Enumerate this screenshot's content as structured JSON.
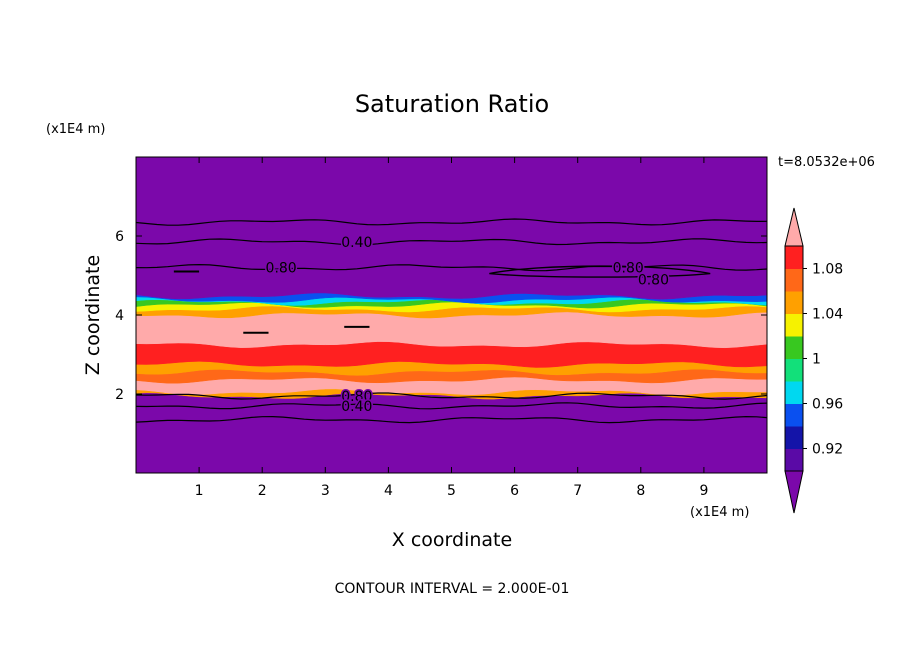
{
  "chart_data": {
    "type": "heatmap",
    "title": "Saturation Ratio",
    "xlabel": "X coordinate",
    "ylabel": "Z coordinate",
    "x_unit": "(x1E4 m)",
    "y_unit": "(x1E4 m)",
    "time_label": "t=8.0532e+06",
    "footer": "CONTOUR INTERVAL = 2.000E-01",
    "xlim": [
      0,
      10
    ],
    "ylim": [
      0,
      8
    ],
    "x_ticks": [
      1,
      2,
      3,
      4,
      5,
      6,
      7,
      8,
      9
    ],
    "y_ticks": [
      2,
      4,
      6
    ],
    "colorbar": {
      "bounds": [
        0.9,
        0.92,
        0.94,
        0.96,
        0.98,
        1.0,
        1.02,
        1.04,
        1.06,
        1.08,
        1.1
      ],
      "colors": [
        "#5a0aa6",
        "#1414a8",
        "#0a50f0",
        "#00d8f0",
        "#12e07a",
        "#38c820",
        "#f6f200",
        "#ffa000",
        "#ff6818",
        "#ff2020"
      ],
      "under_color": "#7b08aa",
      "over_color": "#ffaaaa",
      "tick_labels": [
        "0.92",
        "0.96",
        "1",
        "1.04",
        "1.08"
      ]
    },
    "bands": [
      {
        "z0": 0.0,
        "z1": 1.95,
        "color": "#7b08aa"
      },
      {
        "z0": 1.95,
        "z1": 2.05,
        "color": "#ffa000"
      },
      {
        "z0": 2.05,
        "z1": 2.35,
        "color": "#ffaaaa"
      },
      {
        "z0": 2.35,
        "z1": 2.55,
        "color": "#ff6818"
      },
      {
        "z0": 2.55,
        "z1": 2.75,
        "color": "#ffa000"
      },
      {
        "z0": 2.75,
        "z1": 3.25,
        "color": "#ff2020"
      },
      {
        "z0": 3.25,
        "z1": 4.0,
        "color": "#ffaaaa"
      },
      {
        "z0": 4.0,
        "z1": 4.15,
        "color": "#ffa000"
      },
      {
        "z0": 4.15,
        "z1": 4.25,
        "color": "#f6f200"
      },
      {
        "z0": 4.25,
        "z1": 4.32,
        "color": "#38c820"
      },
      {
        "z0": 4.32,
        "z1": 4.38,
        "color": "#00d8f0"
      },
      {
        "z0": 4.38,
        "z1": 4.48,
        "color": "#0a50f0"
      },
      {
        "z0": 4.48,
        "z1": 8.0,
        "color": "#7b08aa"
      }
    ],
    "contour_levels": [
      {
        "z": 6.35,
        "label": null
      },
      {
        "z": 5.85,
        "label": "0.40",
        "label_x": 3.5
      },
      {
        "z": 5.2,
        "label": "0.80",
        "label_x": 2.3
      },
      {
        "z": 1.95,
        "label": "0.80",
        "label_x": 3.5
      },
      {
        "z": 1.7,
        "label": "0.40",
        "label_x": 3.5
      },
      {
        "z": 1.35,
        "label": null
      }
    ],
    "closed_contour": {
      "x0": 5.6,
      "x1": 9.1,
      "z": 5.05,
      "labels": [
        {
          "text": "0.80",
          "x": 7.8,
          "z": 5.2
        },
        {
          "text": "0.80",
          "x": 8.2,
          "z": 4.9
        }
      ]
    }
  }
}
